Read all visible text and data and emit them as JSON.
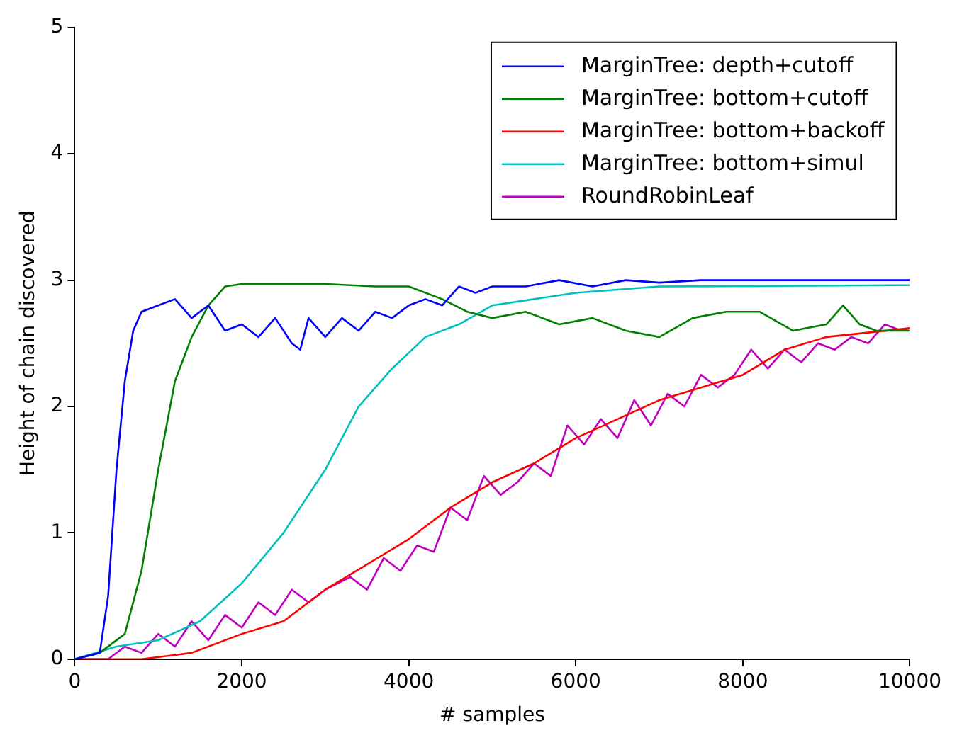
{
  "chart_data": {
    "type": "line",
    "xlabel": "# samples",
    "ylabel": "Height of chain discovered",
    "xlim": [
      0,
      10000
    ],
    "xticks": [
      0,
      2000,
      4000,
      6000,
      8000,
      10000
    ],
    "ylim": [
      0,
      5
    ],
    "yticks": [
      0,
      1,
      2,
      3,
      4,
      5
    ],
    "legend": "top right",
    "marker": "none",
    "line_style": "solid",
    "series": [
      {
        "name": "MarginTree: depth+cutoff",
        "color": "#0000ff",
        "x": [
          0,
          300,
          400,
          500,
          600,
          700,
          800,
          1000,
          1200,
          1400,
          1600,
          1800,
          2000,
          2200,
          2400,
          2600,
          2700,
          2800,
          3000,
          3200,
          3400,
          3600,
          3800,
          4000,
          4200,
          4400,
          4600,
          4800,
          5000,
          5400,
          5800,
          6200,
          6600,
          7000,
          7500,
          8000,
          10000
        ],
        "values": [
          0,
          0.05,
          0.5,
          1.5,
          2.2,
          2.6,
          2.75,
          2.8,
          2.85,
          2.7,
          2.8,
          2.6,
          2.65,
          2.55,
          2.7,
          2.5,
          2.45,
          2.7,
          2.55,
          2.7,
          2.6,
          2.75,
          2.7,
          2.8,
          2.85,
          2.8,
          2.95,
          2.9,
          2.95,
          2.95,
          3,
          2.95,
          3,
          2.98,
          3,
          3,
          3
        ]
      },
      {
        "name": "MarginTree: bottom+cutoff",
        "color": "#008000",
        "x": [
          0,
          300,
          600,
          800,
          1000,
          1200,
          1400,
          1600,
          1800,
          2000,
          3000,
          3600,
          4000,
          4400,
          4700,
          5000,
          5400,
          5800,
          6200,
          6600,
          7000,
          7400,
          7800,
          8200,
          8600,
          9000,
          9200,
          9400,
          9600,
          10000
        ],
        "values": [
          0,
          0.05,
          0.2,
          0.7,
          1.5,
          2.2,
          2.55,
          2.8,
          2.95,
          2.97,
          2.97,
          2.95,
          2.95,
          2.85,
          2.75,
          2.7,
          2.75,
          2.65,
          2.7,
          2.6,
          2.55,
          2.7,
          2.75,
          2.75,
          2.6,
          2.65,
          2.8,
          2.65,
          2.6,
          2.6
        ]
      },
      {
        "name": "MarginTree: bottom+backoff",
        "color": "#ff0000",
        "x": [
          0,
          800,
          1400,
          2000,
          2500,
          3000,
          3500,
          4000,
          4500,
          5000,
          5500,
          6000,
          6500,
          7000,
          7500,
          8000,
          8500,
          9000,
          10000
        ],
        "values": [
          0,
          0,
          0.05,
          0.2,
          0.3,
          0.55,
          0.75,
          0.95,
          1.2,
          1.4,
          1.55,
          1.75,
          1.9,
          2.05,
          2.15,
          2.25,
          2.45,
          2.55,
          2.62
        ]
      },
      {
        "name": "MarginTree: bottom+simul",
        "color": "#00bfbf",
        "x": [
          0,
          500,
          1000,
          1500,
          2000,
          2500,
          3000,
          3400,
          3800,
          4200,
          4600,
          5000,
          5500,
          6000,
          7000,
          10000
        ],
        "values": [
          0,
          0.1,
          0.15,
          0.3,
          0.6,
          1,
          1.5,
          2,
          2.3,
          2.55,
          2.65,
          2.8,
          2.85,
          2.9,
          2.95,
          2.96
        ]
      },
      {
        "name": "RoundRobinLeaf",
        "color": "#bf00bf",
        "x": [
          0,
          400,
          600,
          800,
          1000,
          1200,
          1400,
          1600,
          1800,
          2000,
          2200,
          2400,
          2600,
          2800,
          3000,
          3300,
          3500,
          3700,
          3900,
          4100,
          4300,
          4500,
          4700,
          4900,
          5100,
          5300,
          5500,
          5700,
          5900,
          6100,
          6300,
          6500,
          6700,
          6900,
          7100,
          7300,
          7500,
          7700,
          7900,
          8100,
          8300,
          8500,
          8700,
          8900,
          9100,
          9300,
          9500,
          9700,
          9900,
          10000
        ],
        "values": [
          0,
          0,
          0.1,
          0.05,
          0.2,
          0.1,
          0.3,
          0.15,
          0.35,
          0.25,
          0.45,
          0.35,
          0.55,
          0.45,
          0.55,
          0.65,
          0.55,
          0.8,
          0.7,
          0.9,
          0.85,
          1.2,
          1.1,
          1.45,
          1.3,
          1.4,
          1.55,
          1.45,
          1.85,
          1.7,
          1.9,
          1.75,
          2.05,
          1.85,
          2.1,
          2,
          2.25,
          2.15,
          2.25,
          2.45,
          2.3,
          2.45,
          2.35,
          2.5,
          2.45,
          2.55,
          2.5,
          2.65,
          2.6,
          2.62
        ]
      }
    ]
  }
}
